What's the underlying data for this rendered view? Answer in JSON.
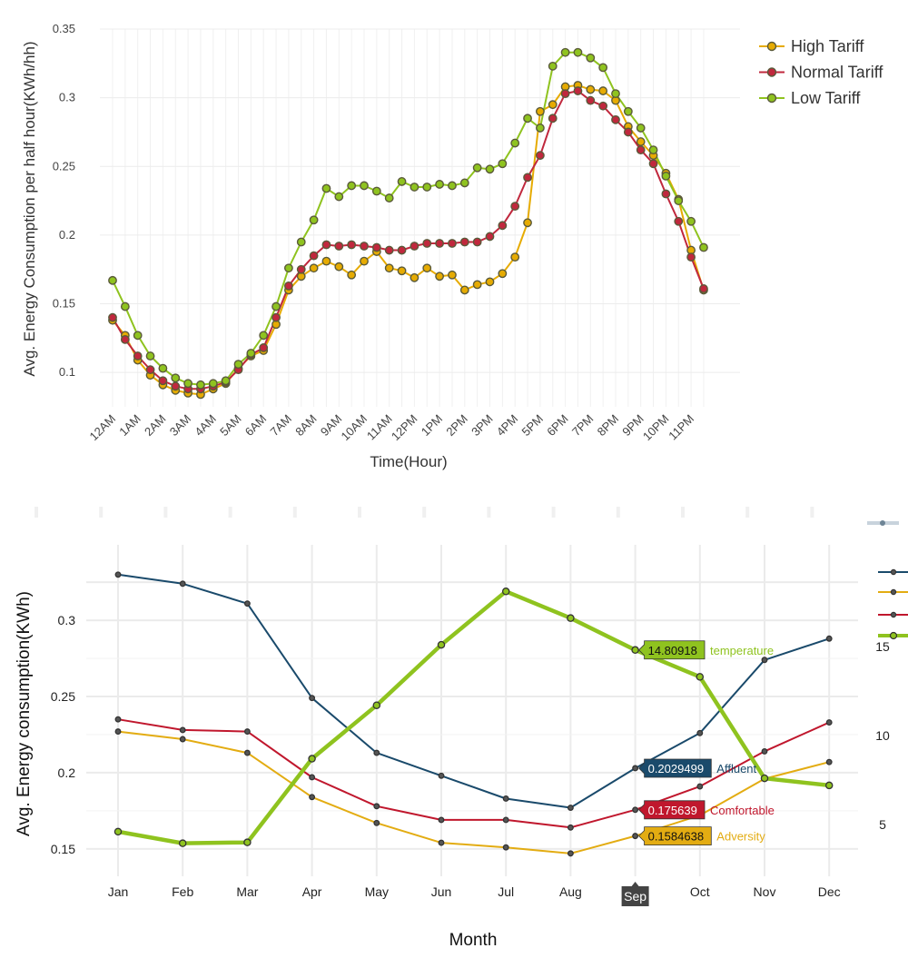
{
  "chart_data": [
    {
      "type": "line",
      "title": "",
      "xlabel": "Time(Hour)",
      "ylabel": "Avg. Energy Consumption per half hour(KWh/hh)",
      "ylim": [
        0.075,
        0.35
      ],
      "yticks": [
        "0.1",
        "0.15",
        "0.2",
        "0.25",
        "0.3",
        "0.35"
      ],
      "x_tick_labels": [
        "12AM",
        "1AM",
        "2AM",
        "3AM",
        "4AM",
        "5AM",
        "6AM",
        "7AM",
        "8AM",
        "9AM",
        "10AM",
        "11AM",
        "12PM",
        "1PM",
        "2PM",
        "3PM",
        "4PM",
        "5PM",
        "6PM",
        "7PM",
        "8PM",
        "9PM",
        "10PM",
        "11PM"
      ],
      "grid": true,
      "legend_position": "top-right",
      "series": [
        {
          "name": "High Tariff",
          "color": "#e6ab02",
          "values": [
            0.138,
            0.127,
            0.109,
            0.098,
            0.091,
            0.087,
            0.085,
            0.084,
            0.088,
            0.092,
            0.103,
            0.112,
            0.116,
            0.135,
            0.16,
            0.17,
            0.176,
            0.181,
            0.177,
            0.171,
            0.181,
            0.188,
            0.176,
            0.174,
            0.169,
            0.176,
            0.17,
            0.171,
            0.16,
            0.164,
            0.166,
            0.172,
            0.184,
            0.209,
            0.29,
            0.295,
            0.308,
            0.309,
            0.306,
            0.305,
            0.298,
            0.279,
            0.268,
            0.258,
            0.245,
            0.226,
            0.189,
            0.16
          ]
        },
        {
          "name": "Normal Tariff",
          "color": "#c0283d",
          "values": [
            0.14,
            0.124,
            0.112,
            0.102,
            0.094,
            0.09,
            0.088,
            0.088,
            0.09,
            0.093,
            0.102,
            0.113,
            0.118,
            0.14,
            0.163,
            0.175,
            0.185,
            0.193,
            0.192,
            0.193,
            0.192,
            0.191,
            0.189,
            0.189,
            0.192,
            0.194,
            0.194,
            0.194,
            0.195,
            0.195,
            0.199,
            0.207,
            0.221,
            0.242,
            0.258,
            0.285,
            0.303,
            0.305,
            0.298,
            0.294,
            0.284,
            0.275,
            0.262,
            0.252,
            0.23,
            0.21,
            0.184,
            0.161
          ]
        },
        {
          "name": "Low Tariff",
          "color": "#8fc31f",
          "values": [
            0.167,
            0.148,
            0.127,
            0.112,
            0.103,
            0.096,
            0.092,
            0.091,
            0.092,
            0.094,
            0.106,
            0.114,
            0.127,
            0.148,
            0.176,
            0.195,
            0.211,
            0.234,
            0.228,
            0.236,
            0.236,
            0.232,
            0.227,
            0.239,
            0.235,
            0.235,
            0.237,
            0.236,
            0.238,
            0.249,
            0.248,
            0.252,
            0.267,
            0.285,
            0.278,
            0.323,
            0.333,
            0.333,
            0.329,
            0.322,
            0.303,
            0.29,
            0.278,
            0.262,
            0.243,
            0.225,
            0.21,
            0.191
          ]
        }
      ]
    },
    {
      "type": "line",
      "title": "",
      "xlabel": "Month",
      "ylabel": "Avg. Energy consumption(KWh)",
      "ylim_left": [
        0.135,
        0.34
      ],
      "yticks_left": [
        "0.15",
        "0.2",
        "0.25",
        "0.3"
      ],
      "ylim_right": [
        2.35,
        19.9
      ],
      "yticks_right": [
        "5",
        "10",
        "15"
      ],
      "categories": [
        "Jan",
        "Feb",
        "Mar",
        "Apr",
        "May",
        "Jun",
        "Jul",
        "Aug",
        "Sep",
        "Oct",
        "Nov",
        "Dec"
      ],
      "grid": true,
      "hovered_category": "Sep",
      "series": [
        {
          "name": "Affluent",
          "color": "#1a4a6b",
          "axis": "left",
          "values": [
            0.33,
            0.324,
            0.311,
            0.249,
            0.213,
            0.198,
            0.183,
            0.177,
            0.2029499,
            0.226,
            0.274,
            0.288
          ]
        },
        {
          "name": "Comfortable",
          "color": "#c0172d",
          "axis": "left",
          "values": [
            0.235,
            0.228,
            0.227,
            0.197,
            0.178,
            0.169,
            0.169,
            0.164,
            0.175639,
            0.191,
            0.214,
            0.233
          ]
        },
        {
          "name": "Adversity",
          "color": "#e3ac12",
          "axis": "left",
          "values": [
            0.227,
            0.222,
            0.213,
            0.184,
            0.167,
            0.154,
            0.151,
            0.147,
            0.1584638,
            0.172,
            0.196,
            0.207
          ]
        },
        {
          "name": "temperature",
          "color": "#8fc31f",
          "axis": "right",
          "values": [
            4.6,
            3.95,
            4.0,
            8.7,
            11.7,
            15.1,
            18.1,
            16.6,
            14.80918,
            13.3,
            7.6,
            7.2
          ]
        }
      ],
      "tooltips": [
        {
          "series": "temperature",
          "value": "14.80918"
        },
        {
          "series": "Affluent",
          "value": "0.2029499"
        },
        {
          "series": "Comfortable",
          "value": "0.175639"
        },
        {
          "series": "Adversity",
          "value": "0.1584638"
        }
      ],
      "hover_label": "Sep"
    }
  ]
}
